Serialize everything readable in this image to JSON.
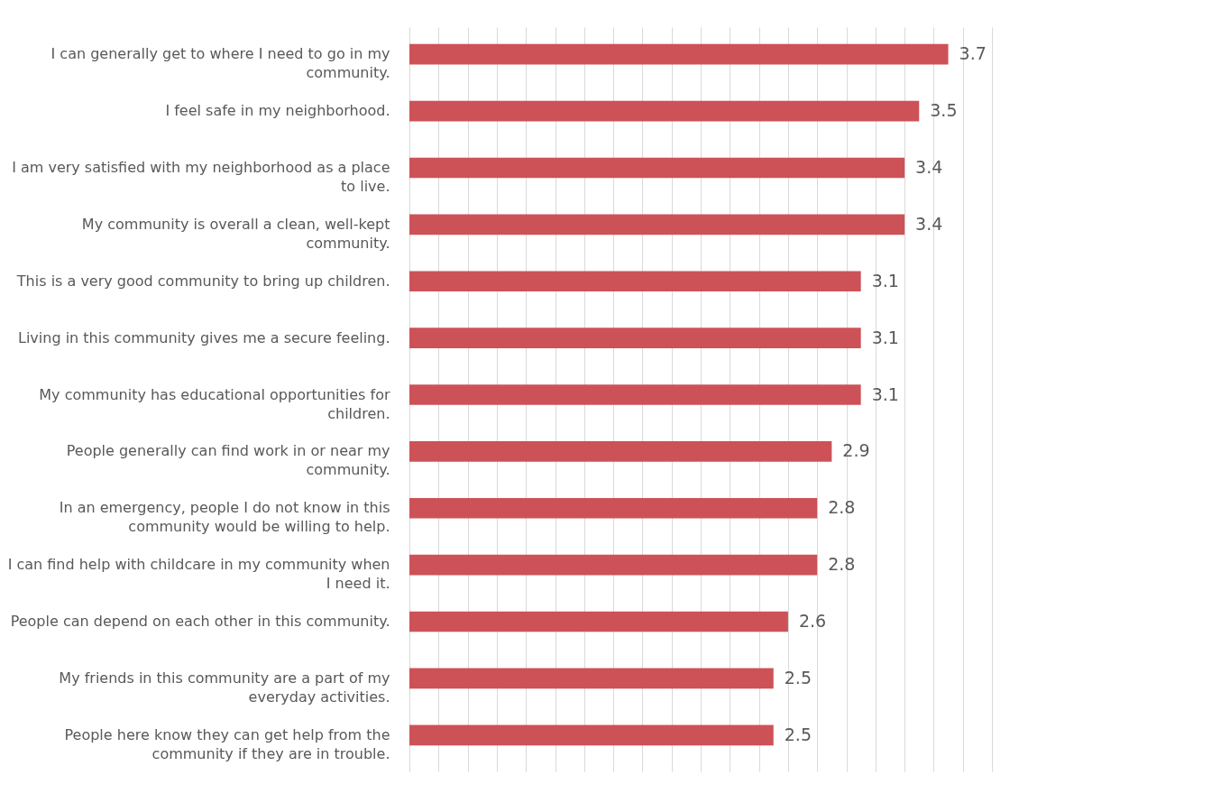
{
  "chart_data": {
    "type": "bar",
    "orientation": "horizontal",
    "categories": [
      "I can generally get to where I need to go in my community.",
      "I feel safe in my neighborhood.",
      "I am very satisfied with my neighborhood as a place to live.",
      "My community is overall a clean, well-kept community.",
      "This is a very good community to bring up children.",
      "Living in this community gives me a secure feeling.",
      "My community has educational opportunities for children.",
      "People generally can find work in or near my community.",
      "In an emergency, people I do not know in this community would be willing to help.",
      "I can find help with childcare in my community when I need it.",
      "People can depend on each other in this community.",
      "My friends in this community are a part of my everyday activities.",
      "People here know they can get help from the community if they are in trouble."
    ],
    "values": [
      3.7,
      3.5,
      3.4,
      3.4,
      3.1,
      3.1,
      3.1,
      2.9,
      2.8,
      2.8,
      2.6,
      2.5,
      2.5
    ],
    "color": "#cd5257",
    "tick_labels": "y",
    "grid": "x",
    "data_labels": true
  }
}
